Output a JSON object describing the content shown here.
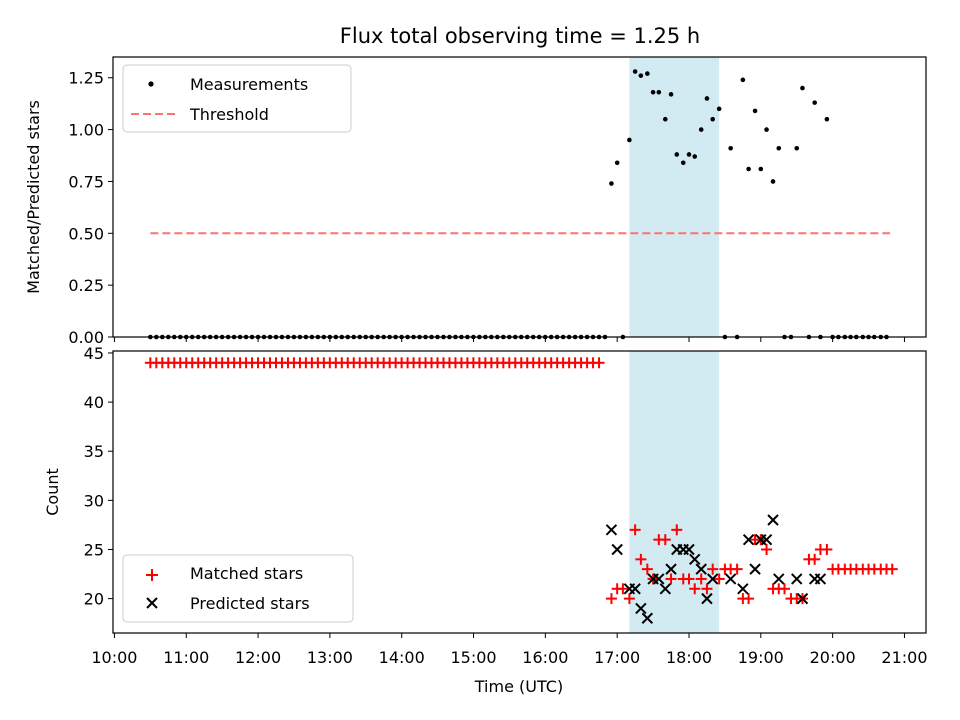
{
  "figure": {
    "title": "Flux total observing time = 1.25 h",
    "xlabel": "Time (UTC)",
    "x_tick_labels": [
      "10:00",
      "11:00",
      "12:00",
      "13:00",
      "14:00",
      "15:00",
      "16:00",
      "17:00",
      "18:00",
      "19:00",
      "20:00",
      "21:00"
    ],
    "shaded_region": {
      "x_start_hours": 17.17,
      "x_end_hours": 18.42,
      "color": "#add8e6"
    }
  },
  "chart_data": [
    {
      "type": "scatter",
      "panel": "top",
      "ylabel": "Matched/Predicted stars",
      "xlim_hours": [
        9.98,
        21.3
      ],
      "ylim": [
        0,
        1.35
      ],
      "y_ticks": [
        "0.00",
        "0.25",
        "0.50",
        "0.75",
        "1.00",
        "1.25"
      ],
      "grid": false,
      "legend_placement": "upper-left",
      "series": [
        {
          "name": "Measurements",
          "color": "#000000",
          "marker": "dot",
          "zero_span_hours": [
            10.5,
            16.85
          ],
          "zero_step_hours": 0.0833,
          "x_hours": [
            16.92,
            17.0,
            17.08,
            17.17,
            17.25,
            17.33,
            17.42,
            17.5,
            17.58,
            17.67,
            17.75,
            17.83,
            17.92,
            18.0,
            18.08,
            18.17,
            18.25,
            18.33,
            18.42,
            18.5,
            18.58,
            18.67,
            18.75,
            18.83,
            18.92,
            19.0,
            19.08,
            19.17,
            19.25,
            19.33,
            19.42,
            19.5,
            19.58,
            19.67,
            19.75,
            19.83,
            19.92,
            20.0,
            20.08,
            20.17,
            20.25,
            20.33,
            20.42,
            20.5,
            20.58,
            20.67,
            20.75
          ],
          "y": [
            0.74,
            0.84,
            0.0,
            0.95,
            1.28,
            1.26,
            1.27,
            1.18,
            1.18,
            1.05,
            1.17,
            0.88,
            0.84,
            0.88,
            0.87,
            1.0,
            1.15,
            1.05,
            1.1,
            0.0,
            0.91,
            0.0,
            1.24,
            0.81,
            1.09,
            0.81,
            1.0,
            0.75,
            0.91,
            0.0,
            0.0,
            0.91,
            1.2,
            0.0,
            1.13,
            0.0,
            1.05,
            0.0,
            0.0,
            0.0,
            0.0,
            0.0,
            0.0,
            0.0,
            0.0,
            0.0,
            0.0
          ]
        },
        {
          "name": "Threshold",
          "color": "#ff7070",
          "style": "dashed",
          "x_hours": [
            10.5,
            20.8
          ],
          "y": [
            0.5,
            0.5
          ]
        }
      ]
    },
    {
      "type": "scatter",
      "panel": "bottom",
      "ylabel": "Count",
      "xlim_hours": [
        9.98,
        21.3
      ],
      "ylim": [
        16.5,
        45.2
      ],
      "y_ticks": [
        "20",
        "25",
        "30",
        "35",
        "40",
        "45"
      ],
      "grid": false,
      "legend_placement": "lower-left",
      "series": [
        {
          "name": "Matched stars",
          "color": "#ff0000",
          "marker": "plus",
          "constant_segment": {
            "x_start_hours": 10.5,
            "x_end_hours": 16.83,
            "step_hours": 0.0833,
            "value": 44
          },
          "x_hours": [
            16.92,
            17.0,
            17.08,
            17.17,
            17.25,
            17.33,
            17.42,
            17.5,
            17.58,
            17.67,
            17.75,
            17.83,
            17.92,
            18.0,
            18.08,
            18.17,
            18.25,
            18.33,
            18.42,
            18.5,
            18.58,
            18.67,
            18.75,
            18.83,
            18.92,
            19.0,
            19.08,
            19.17,
            19.25,
            19.33,
            19.42,
            19.5,
            19.58,
            19.67,
            19.75,
            19.83,
            19.92,
            20.0,
            20.08,
            20.17,
            20.25,
            20.33,
            20.42,
            20.5,
            20.58,
            20.67,
            20.75,
            20.83
          ],
          "y": [
            20,
            21,
            21,
            20,
            27,
            24,
            23,
            22,
            26,
            26,
            22,
            27,
            22,
            22,
            21,
            22,
            21,
            23,
            22,
            23,
            23,
            23,
            20,
            20,
            26,
            26,
            25,
            21,
            21,
            21,
            20,
            20,
            20,
            24,
            24,
            25,
            25,
            23,
            23,
            23,
            23,
            23,
            23,
            23,
            23,
            23,
            23,
            23
          ]
        },
        {
          "name": "Predicted stars",
          "color": "#000000",
          "marker": "x",
          "x_hours": [
            16.92,
            17.0,
            17.17,
            17.25,
            17.33,
            17.42,
            17.5,
            17.58,
            17.67,
            17.75,
            17.83,
            17.92,
            18.0,
            18.08,
            18.17,
            18.25,
            18.33,
            18.58,
            18.75,
            18.83,
            18.92,
            19.0,
            19.08,
            19.17,
            19.25,
            19.5,
            19.58,
            19.75,
            19.83
          ],
          "y": [
            27,
            25,
            21,
            21,
            19,
            18,
            22,
            22,
            21,
            23,
            25,
            25,
            25,
            24,
            23,
            20,
            22,
            22,
            21,
            26,
            23,
            26,
            26,
            28,
            22,
            22,
            20,
            22,
            22
          ]
        }
      ]
    }
  ]
}
